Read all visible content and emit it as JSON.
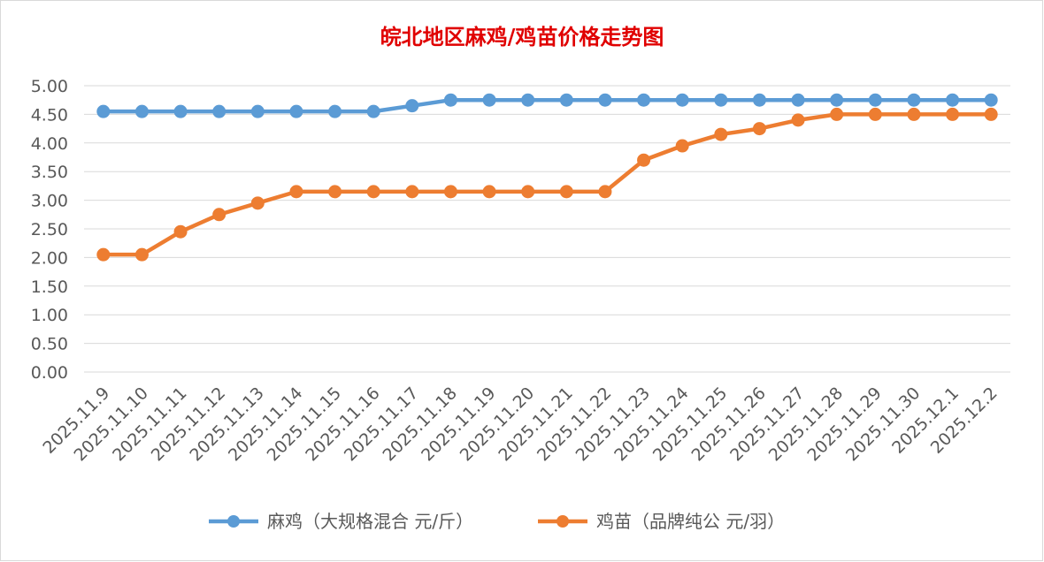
{
  "chart_data": {
    "type": "line",
    "title": "皖北地区麻鸡/鸡苗价格走势图",
    "xlabel": "",
    "ylabel": "",
    "categories": [
      "2025.11.9",
      "2025.11.10",
      "2025.11.11",
      "2025.11.12",
      "2025.11.13",
      "2025.11.14",
      "2025.11.15",
      "2025.11.16",
      "2025.11.17",
      "2025.11.18",
      "2025.11.19",
      "2025.11.20",
      "2025.11.21",
      "2025.11.22",
      "2025.11.23",
      "2025.11.24",
      "2025.11.25",
      "2025.11.26",
      "2025.11.27",
      "2025.11.28",
      "2025.11.29",
      "2025.11.30",
      "2025.12.1",
      "2025.12.2"
    ],
    "ylim": [
      0,
      5
    ],
    "yticks": [
      "0.00",
      "0.50",
      "1.00",
      "1.50",
      "2.00",
      "2.50",
      "3.00",
      "3.50",
      "4.00",
      "4.50",
      "5.00"
    ],
    "grid": true,
    "legend_position": "bottom",
    "series": [
      {
        "name": "麻鸡（大规格混合 元/斤）",
        "color": "#5b9bd5",
        "values": [
          4.55,
          4.55,
          4.55,
          4.55,
          4.55,
          4.55,
          4.55,
          4.55,
          4.65,
          4.75,
          4.75,
          4.75,
          4.75,
          4.75,
          4.75,
          4.75,
          4.75,
          4.75,
          4.75,
          4.75,
          4.75,
          4.75,
          4.75,
          4.75
        ]
      },
      {
        "name": "鸡苗（品牌纯公 元/羽）",
        "color": "#ed7d31",
        "values": [
          2.05,
          2.05,
          2.45,
          2.75,
          2.95,
          3.15,
          3.15,
          3.15,
          3.15,
          3.15,
          3.15,
          3.15,
          3.15,
          3.15,
          3.7,
          3.95,
          4.15,
          4.25,
          4.4,
          4.5,
          4.5,
          4.5,
          4.5,
          4.5
        ]
      }
    ]
  }
}
